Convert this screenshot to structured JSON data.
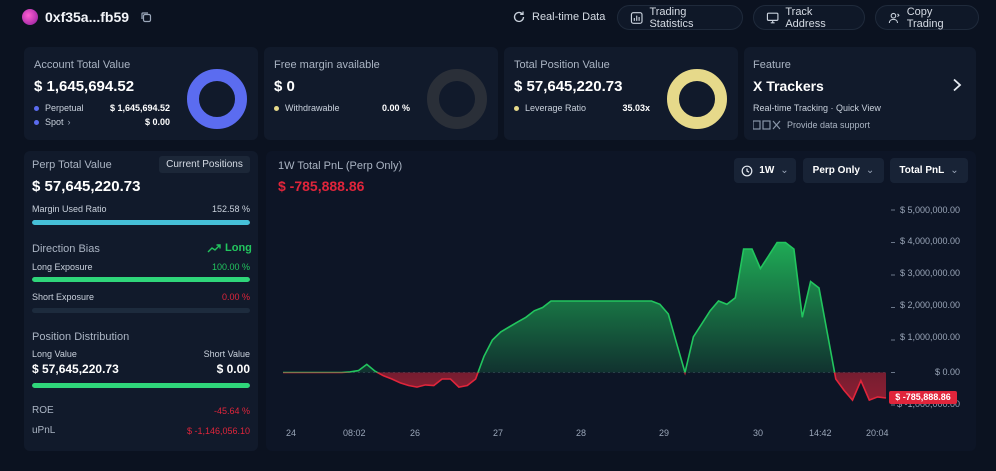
{
  "header": {
    "address": "0xf35a...fb59",
    "realtime_label": "Real-time Data",
    "buttons": [
      {
        "label": "Trading Statistics",
        "icon": "chart-bars-icon"
      },
      {
        "label": "Track Address",
        "icon": "monitor-icon"
      },
      {
        "label": "Copy Trading",
        "icon": "user-copy-icon"
      }
    ]
  },
  "cards": {
    "account": {
      "title": "Account Total Value",
      "value": "$ 1,645,694.52",
      "rows": [
        {
          "label": "Perpetual",
          "value": "$ 1,645,694.52"
        },
        {
          "label": "Spot",
          "value": "$ 0.00"
        }
      ],
      "ring_percent": 100,
      "ring_color": "#5b6cf0"
    },
    "margin": {
      "title": "Free margin available",
      "value": "$ 0",
      "rows": [
        {
          "label": "Withdrawable",
          "value": "0.00 %"
        }
      ],
      "ring_percent": 0,
      "ring_color": "#2a2f38"
    },
    "position": {
      "title": "Total Position Value",
      "value": "$ 57,645,220.73",
      "rows": [
        {
          "label": "Leverage Ratio",
          "value": "35.03x"
        }
      ],
      "ring_percent": 100,
      "ring_color": "#e6d98a"
    },
    "feature": {
      "title": "Feature",
      "name": "X Trackers",
      "desc": "Real-time Tracking · Quick View",
      "support": "Provide data support"
    }
  },
  "perp": {
    "title": "Perp Total Value",
    "tab": "Current Positions",
    "value": "$ 57,645,220.73",
    "margin_label": "Margin Used Ratio",
    "margin_value": "152.58 %",
    "margin_fill": 100,
    "bias_label": "Direction Bias",
    "bias_value": "Long",
    "long_label": "Long Exposure",
    "long_value": "100.00 %",
    "long_fill": 100,
    "short_label": "Short Exposure",
    "short_value": "0.00 %",
    "short_fill": 0,
    "dist_label": "Position Distribution",
    "long_val_label": "Long Value",
    "short_val_label": "Short Value",
    "long_val": "$ 57,645,220.73",
    "short_val": "$ 0.00",
    "dist_fill": 100,
    "roe_label": "ROE",
    "roe_value": "-45.64 %",
    "upnl_label": "uPnL",
    "upnl_value": "$ -1,146,056.10"
  },
  "pnl": {
    "title": "1W Total PnL (Perp Only)",
    "value": "$ -785,888.86",
    "controls": [
      "1W",
      "Perp Only",
      "Total PnL"
    ]
  },
  "chart_data": {
    "type": "area",
    "y_ticks": [
      "$ 5,000,000.00",
      "$ 4,000,000.00",
      "$ 3,000,000.00",
      "$ 2,000,000.00",
      "$ 1,000,000.00",
      "$ 0.00",
      "$ -1,000,000.00"
    ],
    "x_ticks": [
      "24",
      "08:02",
      "26",
      "27",
      "28",
      "29",
      "30",
      "14:42",
      "20:04"
    ],
    "ylim": [
      -1000000,
      5000000
    ],
    "current_label": "$ -785,888.86",
    "positive_color": "#22c55e",
    "negative_color": "#e0253b",
    "points": [
      0,
      0,
      0,
      0,
      0,
      0,
      0,
      0,
      20000,
      60000,
      250000,
      40000,
      -100000,
      -200000,
      -320000,
      -400000,
      -450000,
      -380000,
      -400000,
      -200000,
      -200000,
      -450000,
      -400000,
      -200000,
      500000,
      1000000,
      1250000,
      1400000,
      1550000,
      1700000,
      1900000,
      2000000,
      2200000,
      2200000,
      2200000,
      2200000,
      2200000,
      2200000,
      2200000,
      2200000,
      2200000,
      2200000,
      2200000,
      2200000,
      2200000,
      2100000,
      1800000,
      900000,
      0,
      1100000,
      1500000,
      1900000,
      2200000,
      2100000,
      2300000,
      3800000,
      3800000,
      3200000,
      3600000,
      4000000,
      4000000,
      3800000,
      1700000,
      2800000,
      2600000,
      1200000,
      -200000,
      -550000,
      -850000,
      -250000,
      -850000,
      -750000,
      -785888
    ]
  }
}
